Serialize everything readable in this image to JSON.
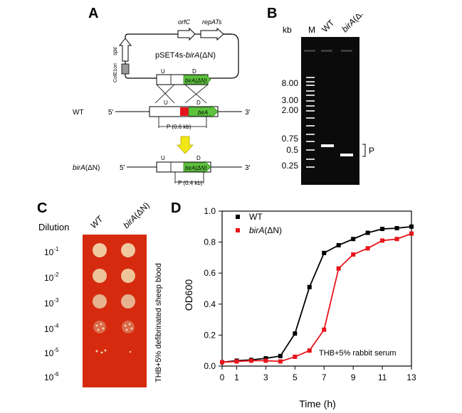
{
  "panels": {
    "A": {
      "letter": "A",
      "plasmid_label_prefix": "pSET4s-",
      "plasmid_label_gene": "birA",
      "plasmid_label_suffix": "(ΔN)",
      "orfC": "orfC",
      "repAts": "repATs",
      "spc": "spc",
      "colE1": "ColE1ori",
      "u": "U",
      "d": "D",
      "birA_dN": "birA(ΔN)",
      "birA": "birA",
      "wt_label": "WT",
      "five_prime": "5'",
      "three_prime": "3'",
      "p_wt": "P (0.6 kb)",
      "mut_label": "birA(ΔN)",
      "p_mut": "P (0.4 kb)"
    },
    "B": {
      "letter": "B",
      "kb": "kb",
      "lanes": [
        "M",
        "WT",
        "birA(ΔN)"
      ],
      "ladder": [
        "8.00",
        "3.00",
        "2.00",
        "0.75",
        "0.5",
        "0.25"
      ],
      "bracket_label": "P"
    },
    "C": {
      "letter": "C",
      "dilution": "Dilution",
      "col_wt": "WT",
      "col_mut": "birA(ΔN)",
      "dilutions": [
        "10^-1",
        "10^-2",
        "10^-3",
        "10^-4",
        "10^-5",
        "10^-6"
      ],
      "side_label": "THB+5% defibrinated sheep blood"
    },
    "D": {
      "letter": "D",
      "annotation": "THB+5% rabbit serum"
    }
  },
  "colors": {
    "wt_line": "#000000",
    "mut_line": "#e8141b",
    "agar": "#d62a0e",
    "gel": "#0b0b0b",
    "green_gene": "#5dc33e",
    "red_segment": "#e8141b",
    "arrow_yellow": "#f2e614"
  },
  "chart_data": {
    "type": "line",
    "title": "",
    "xlabel": "Time (h)",
    "ylabel": "OD600",
    "xlim": [
      0,
      13
    ],
    "ylim": [
      0,
      1.0
    ],
    "xticks": [
      0,
      1,
      3,
      5,
      7,
      9,
      11,
      13
    ],
    "yticks": [
      0.0,
      0.2,
      0.4,
      0.6,
      0.8,
      1.0
    ],
    "legend_position": "top-left",
    "series": [
      {
        "name": "WT",
        "color": "#000000",
        "marker": "square",
        "x": [
          0,
          1,
          2,
          3,
          4,
          5,
          6,
          7,
          8,
          9,
          10,
          11,
          12,
          13
        ],
        "y": [
          0.025,
          0.035,
          0.04,
          0.05,
          0.065,
          0.21,
          0.51,
          0.73,
          0.78,
          0.82,
          0.86,
          0.885,
          0.89,
          0.9
        ]
      },
      {
        "name": "birA(ΔN)",
        "color": "#e8141b",
        "marker": "square",
        "x": [
          0,
          1,
          2,
          3,
          4,
          5,
          6,
          7,
          8,
          9,
          10,
          11,
          12,
          13
        ],
        "y": [
          0.025,
          0.03,
          0.035,
          0.035,
          0.03,
          0.06,
          0.1,
          0.235,
          0.63,
          0.72,
          0.76,
          0.81,
          0.82,
          0.855
        ]
      }
    ]
  }
}
